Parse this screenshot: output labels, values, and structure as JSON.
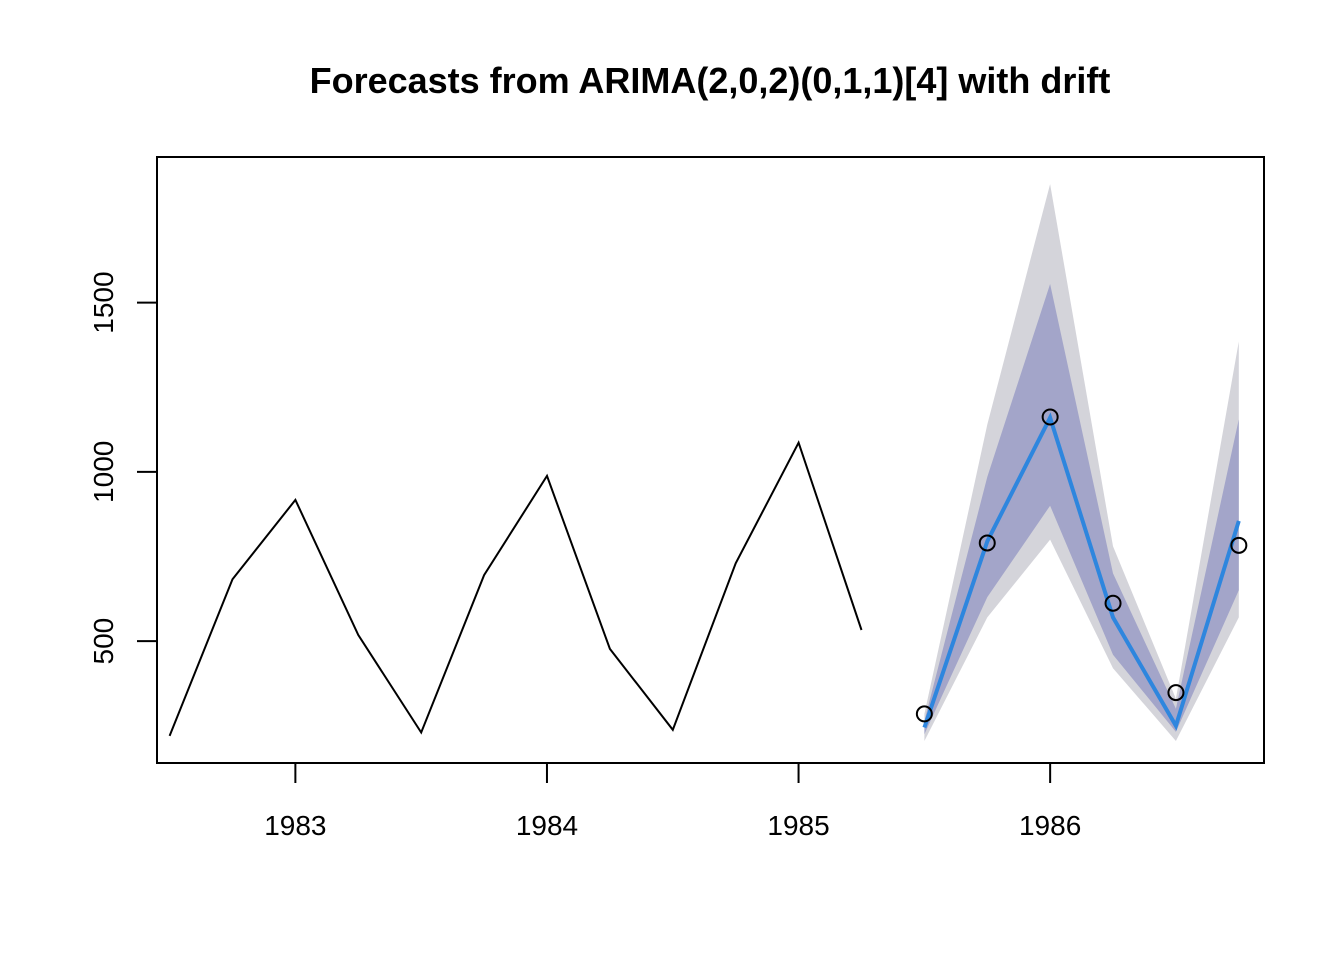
{
  "chart_data": {
    "type": "line",
    "title": "Forecasts from ARIMA(2,0,2)(0,1,1)[4] with drift",
    "xlabel": "",
    "ylabel": "",
    "xlim": [
      1982.45,
      1986.85
    ],
    "ylim": [
      140,
      1930
    ],
    "x_ticks": [
      1983,
      1984,
      1985,
      1986
    ],
    "x_tick_labels": [
      "1983",
      "1984",
      "1985",
      "1986"
    ],
    "y_ticks": [
      500,
      1000,
      1500
    ],
    "y_tick_labels": [
      "500",
      "1000",
      "1500"
    ],
    "grid": false,
    "colors": {
      "history": "#000000",
      "forecast": "#2e86de",
      "band80": "#a3a5c9",
      "band95": "#d4d4da",
      "observed_points": "#000000"
    },
    "series": [
      {
        "name": "history",
        "x": [
          1982.5,
          1982.75,
          1983.0,
          1983.25,
          1983.5,
          1983.75,
          1984.0,
          1984.25,
          1984.5,
          1984.75,
          1985.0,
          1985.25
        ],
        "values": [
          220,
          683,
          917,
          518,
          230,
          695,
          988,
          477,
          238,
          730,
          1086,
          533
        ]
      },
      {
        "name": "forecast",
        "x": [
          1985.5,
          1985.75,
          1986.0,
          1986.25,
          1986.5,
          1986.75
        ],
        "values": [
          245,
          795,
          1160,
          570,
          250,
          855
        ]
      },
      {
        "name": "lower80",
        "x": [
          1985.5,
          1985.75,
          1986.0,
          1986.25,
          1986.5,
          1986.75
        ],
        "values": [
          225,
          630,
          900,
          460,
          232,
          650
        ]
      },
      {
        "name": "upper80",
        "x": [
          1985.5,
          1985.75,
          1986.0,
          1986.25,
          1986.5,
          1986.75
        ],
        "values": [
          265,
          985,
          1555,
          700,
          300,
          1155
        ]
      },
      {
        "name": "lower95",
        "x": [
          1985.5,
          1985.75,
          1986.0,
          1986.25,
          1986.5,
          1986.75
        ],
        "values": [
          205,
          570,
          800,
          420,
          205,
          570
        ]
      },
      {
        "name": "upper95",
        "x": [
          1985.5,
          1985.75,
          1986.0,
          1986.25,
          1986.5,
          1986.75
        ],
        "values": [
          285,
          1140,
          1850,
          780,
          330,
          1385
        ]
      },
      {
        "name": "observed",
        "x": [
          1985.5,
          1985.75,
          1986.0,
          1986.25,
          1986.5,
          1986.75
        ],
        "values": [
          285,
          790,
          1162,
          612,
          348,
          783
        ]
      }
    ]
  }
}
